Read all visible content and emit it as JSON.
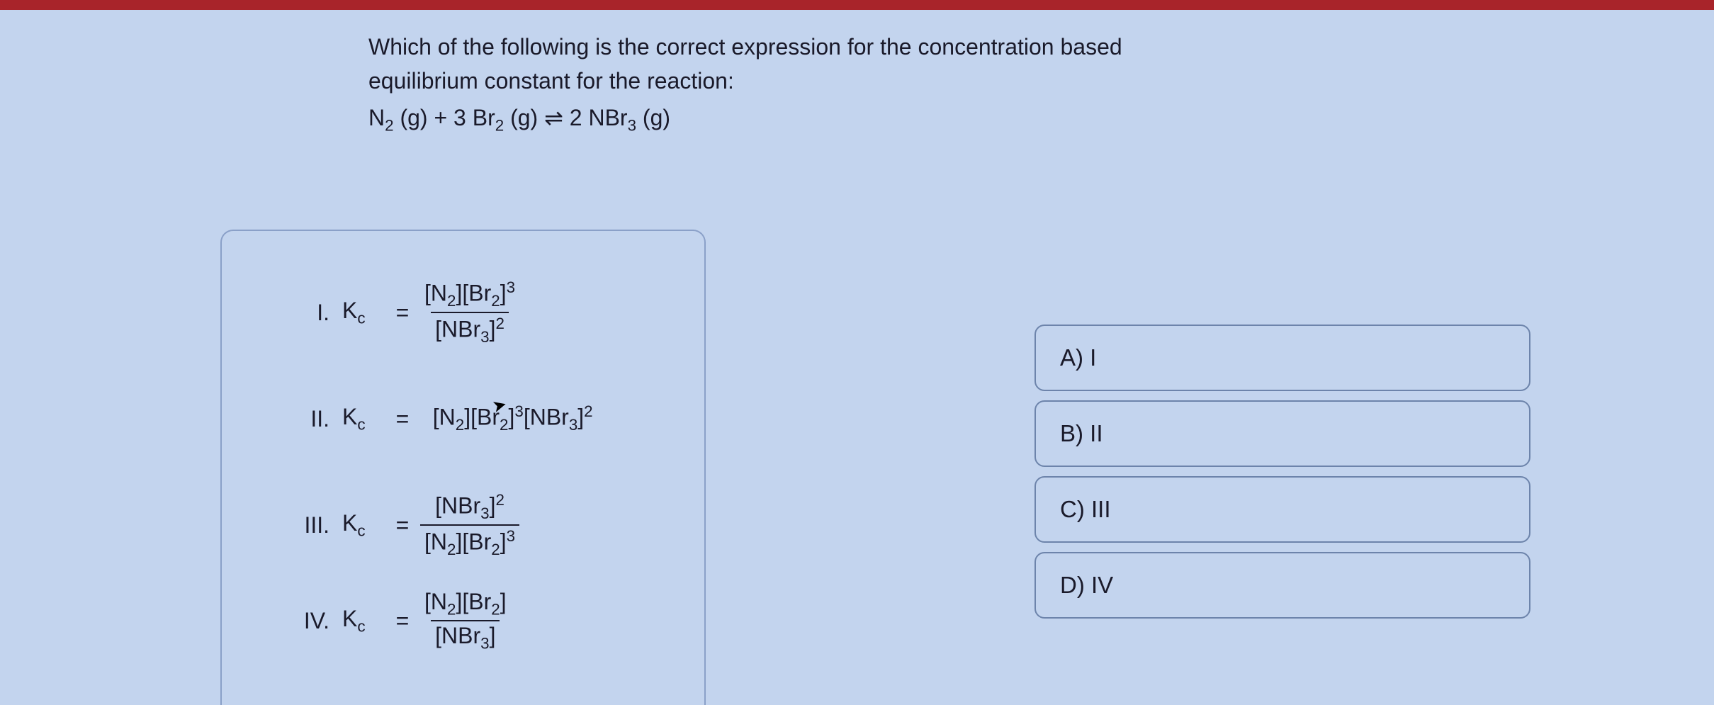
{
  "accent_bar_color": "#a8242a",
  "background_color": "#c3d4ee",
  "question": {
    "line1": "Which of the following is the correct expression for the concentration based",
    "line2": "equilibrium constant for the reaction:"
  },
  "reaction": {
    "r1": "N",
    "r1sub": "2",
    "phase1": " (g) + 3 Br",
    "r2sub": "2",
    "phase2": " (g) ⇌ 2 NBr",
    "r3sub": "3",
    "phase3": " (g)"
  },
  "expressions": {
    "kc_label": "K",
    "kc_sub": "c",
    "eq": "=",
    "i": {
      "roman": "I.",
      "num_a": "[N",
      "num_a_sub": "2",
      "num_b": "][Br",
      "num_b_sub": "2",
      "num_c": "]",
      "num_sup": "3",
      "den_a": "[NBr",
      "den_a_sub": "3",
      "den_b": "]",
      "den_sup": "2"
    },
    "ii": {
      "roman": "II.",
      "a": "[N",
      "a_sub": "2",
      "b": "][Br",
      "b_sub": "2",
      "c": "]",
      "c_sup": "3",
      "d": "[NBr",
      "d_sub": "3",
      "e": "]",
      "e_sup": "2"
    },
    "iii": {
      "roman": "III.",
      "num_a": "[NBr",
      "num_a_sub": "3",
      "num_b": "]",
      "num_sup": "2",
      "den_a": "[N",
      "den_a_sub": "2",
      "den_b": "][Br",
      "den_b_sub": "2",
      "den_c": "]",
      "den_sup": "3"
    },
    "iv": {
      "roman": "IV.",
      "num_a": "[N",
      "num_a_sub": "2",
      "num_b": "][Br",
      "num_b_sub": "2",
      "num_c": "]",
      "den_a": "[NBr",
      "den_a_sub": "3",
      "den_b": "]"
    }
  },
  "answers": {
    "a": "A) I",
    "b": "B) II",
    "c": "C) III",
    "d": "D) IV"
  }
}
